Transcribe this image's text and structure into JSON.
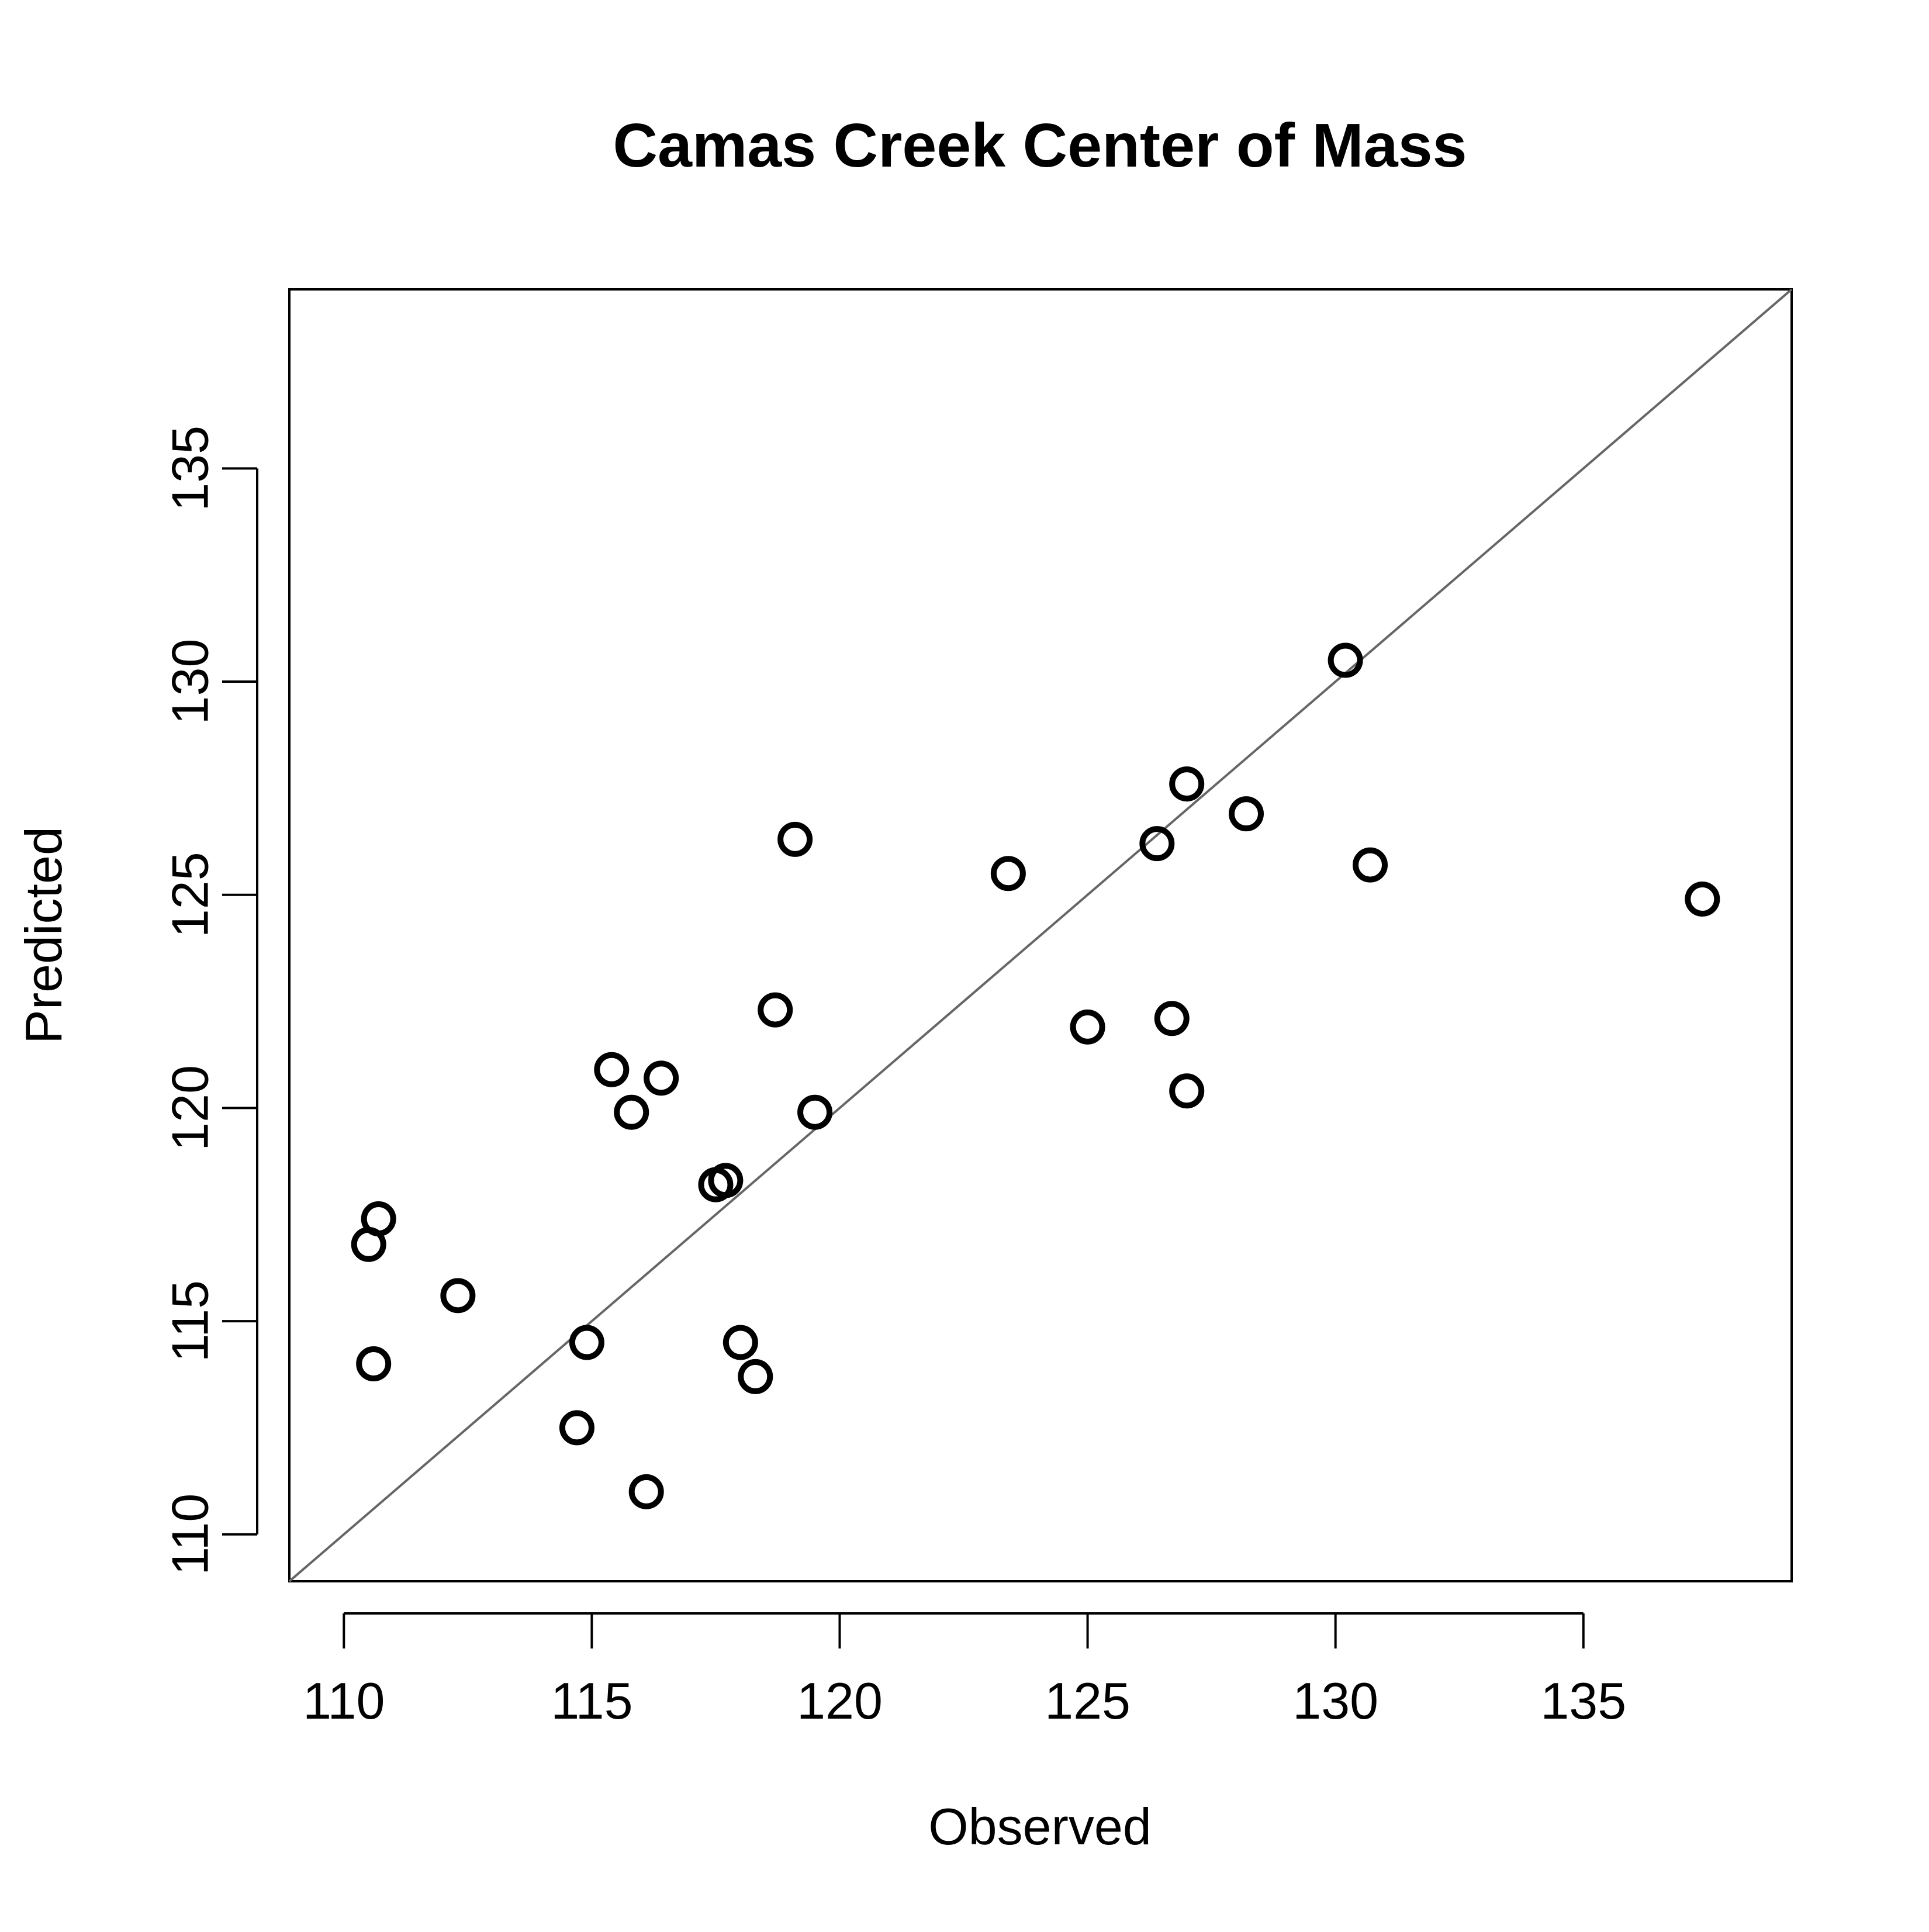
{
  "chart_data": {
    "type": "scatter",
    "title": "Camas Creek Center of Mass",
    "xlabel": "Observed",
    "ylabel": "Predicted",
    "xlim": [
      108.9,
      139.2
    ],
    "ylim": [
      108.9,
      139.2
    ],
    "x_ticks": [
      110,
      115,
      120,
      125,
      130,
      135
    ],
    "y_ticks": [
      110,
      115,
      120,
      125,
      130,
      135
    ],
    "x_tick_labels": [
      "110",
      "115",
      "120",
      "125",
      "130",
      "135"
    ],
    "y_tick_labels": [
      "110",
      "115",
      "120",
      "125",
      "130",
      "135"
    ],
    "reference_line": {
      "type": "identity",
      "color": "#666666"
    },
    "grid": false,
    "marker": {
      "shape": "open-circle",
      "color": "#000000"
    },
    "points": [
      {
        "x": 110.5,
        "y": 116.8
      },
      {
        "x": 110.7,
        "y": 117.4
      },
      {
        "x": 110.6,
        "y": 114.0
      },
      {
        "x": 112.3,
        "y": 115.6
      },
      {
        "x": 114.7,
        "y": 112.5
      },
      {
        "x": 114.9,
        "y": 114.5
      },
      {
        "x": 115.4,
        "y": 120.9
      },
      {
        "x": 115.8,
        "y": 119.9
      },
      {
        "x": 116.1,
        "y": 111.0
      },
      {
        "x": 116.4,
        "y": 120.7
      },
      {
        "x": 117.5,
        "y": 118.2
      },
      {
        "x": 117.7,
        "y": 118.3
      },
      {
        "x": 118.0,
        "y": 114.5
      },
      {
        "x": 118.3,
        "y": 113.7
      },
      {
        "x": 118.7,
        "y": 122.3
      },
      {
        "x": 119.1,
        "y": 126.3
      },
      {
        "x": 119.5,
        "y": 119.9
      },
      {
        "x": 123.4,
        "y": 125.5
      },
      {
        "x": 125.0,
        "y": 121.9
      },
      {
        "x": 126.4,
        "y": 126.2
      },
      {
        "x": 126.7,
        "y": 122.1
      },
      {
        "x": 127.0,
        "y": 127.6
      },
      {
        "x": 127.0,
        "y": 120.4
      },
      {
        "x": 128.2,
        "y": 126.9
      },
      {
        "x": 130.2,
        "y": 130.5
      },
      {
        "x": 130.7,
        "y": 125.7
      },
      {
        "x": 137.4,
        "y": 124.9
      }
    ]
  }
}
